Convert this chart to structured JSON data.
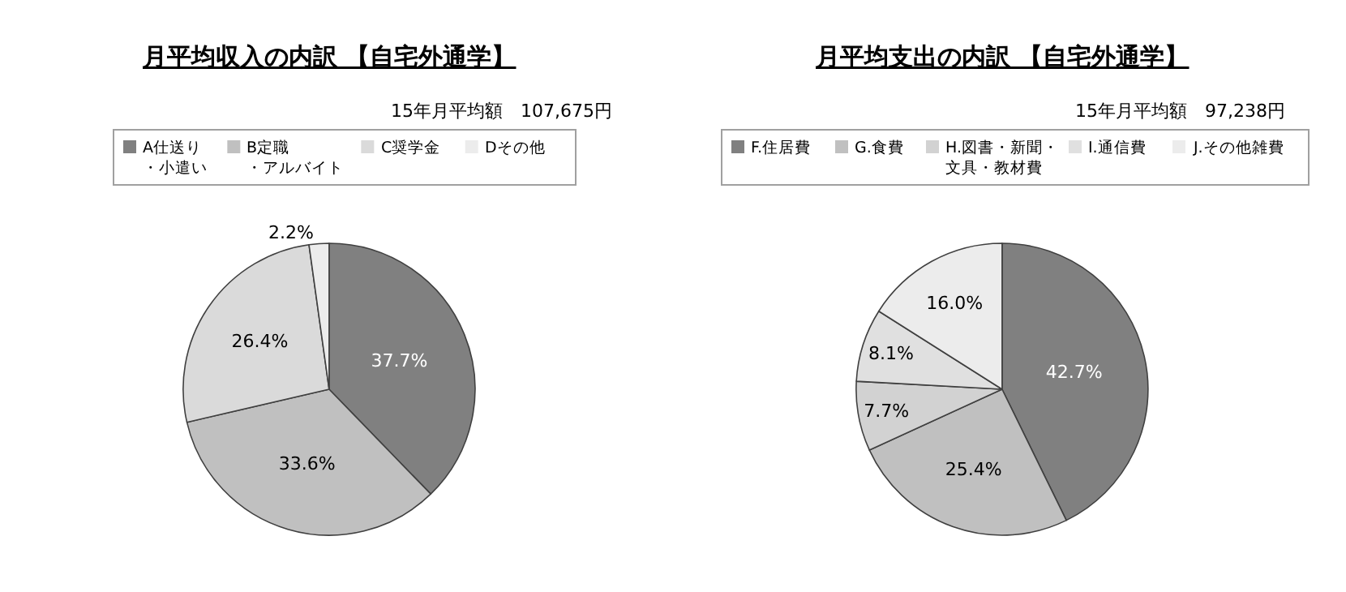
{
  "chart_data": [
    {
      "type": "pie",
      "title": "月平均収入の内訳 【自宅外通学】",
      "subtitle": "15年月平均額　107,675円",
      "categories": [
        "A仕送り・小遣い",
        "B定職・アルバイト",
        "C奨学金",
        "Dその他"
      ],
      "values": [
        37.7,
        33.6,
        26.4,
        2.2
      ],
      "value_labels": [
        "37.7%",
        "33.6%",
        "26.4%",
        "2.2%"
      ],
      "colors": [
        "#808080",
        "#c0c0c0",
        "#dadada",
        "#ececec"
      ],
      "legend": "top"
    },
    {
      "type": "pie",
      "title": "月平均支出の内訳 【自宅外通学】",
      "subtitle": "15年月平均額　97,238円",
      "categories": [
        "F.住居費",
        "G.食費",
        "H.図書・新聞・文具・教材費",
        "I.通信費",
        "J.その他雑費"
      ],
      "values": [
        42.7,
        25.4,
        7.7,
        8.1,
        16.0
      ],
      "value_labels": [
        "42.7%",
        "25.4%",
        "7.7%",
        "8.1%",
        "16.0%"
      ],
      "colors": [
        "#808080",
        "#c0c0c0",
        "#d2d2d2",
        "#e0e0e0",
        "#ececec"
      ],
      "legend": "top"
    }
  ]
}
